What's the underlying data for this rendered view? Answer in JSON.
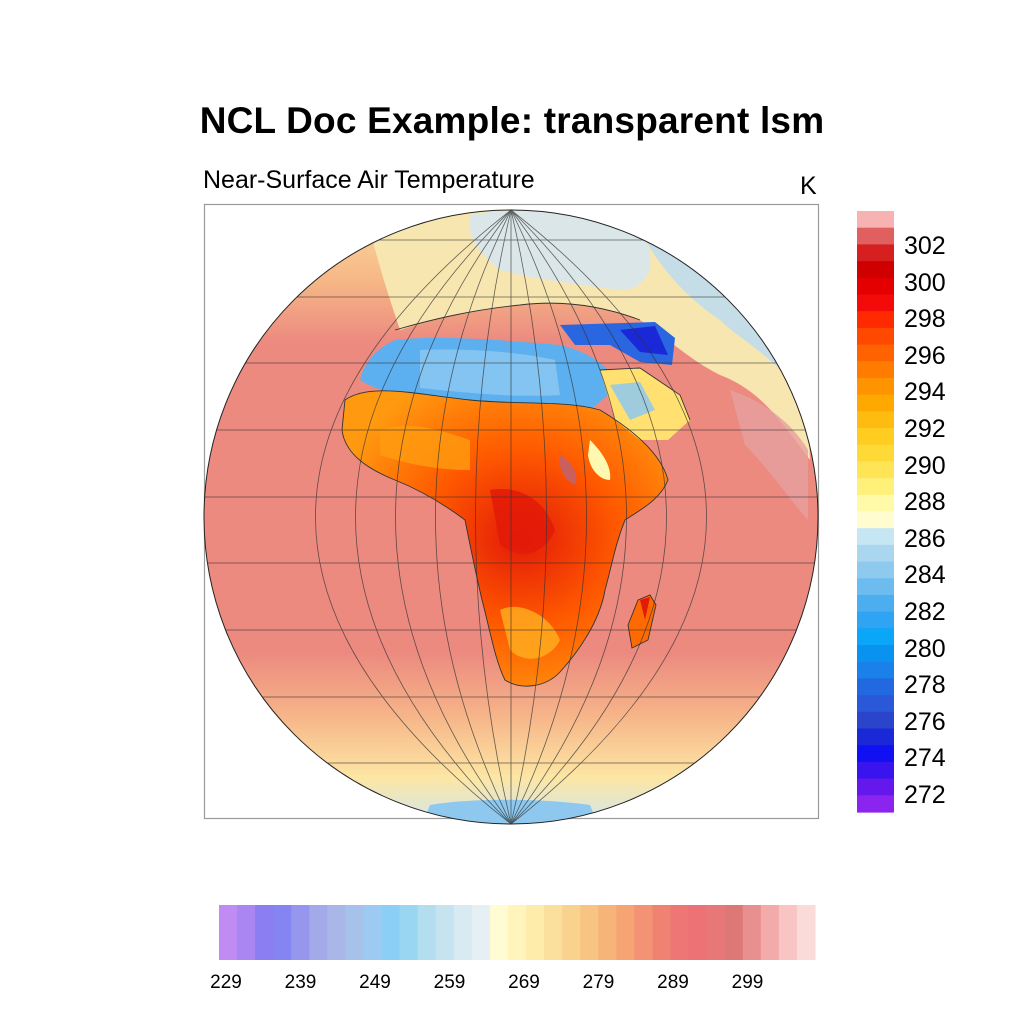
{
  "title": "NCL Doc Example: transparent lsm",
  "subtitle": "Near-Surface Air Temperature",
  "units": "K",
  "land_colorbar": {
    "labels": [
      "302",
      "300",
      "298",
      "296",
      "294",
      "292",
      "290",
      "288",
      "286",
      "284",
      "282",
      "280",
      "278",
      "276",
      "274",
      "272"
    ],
    "colors_top_to_bottom": [
      "#f7b2b2",
      "#e06060",
      "#d62020",
      "#d00000",
      "#e40000",
      "#f50a0a",
      "#ff2a00",
      "#ff4800",
      "#ff6200",
      "#ff7c00",
      "#ff9400",
      "#ffa800",
      "#ffbc10",
      "#ffcc20",
      "#ffda36",
      "#ffe456",
      "#fff07a",
      "#fffaa8",
      "#fffdd0",
      "#c6e6f4",
      "#aad6ef",
      "#8ecaee",
      "#6cbcf0",
      "#4caeef",
      "#2ea4f3",
      "#0aa6f8",
      "#0a92f0",
      "#1a80ea",
      "#2268e0",
      "#2a58d8",
      "#2a44cc",
      "#1a28d8",
      "#1010f2",
      "#3a14ee",
      "#6418ec",
      "#8a24ee"
    ]
  },
  "ocean_colorbar": {
    "labels": [
      "229",
      "239",
      "249",
      "259",
      "269",
      "279",
      "289",
      "299"
    ],
    "colors_left_to_right": [
      "#c08cf4",
      "#aa86f2",
      "#8a7ef2",
      "#8484f2",
      "#9696ee",
      "#a2aaea",
      "#a8b6e8",
      "#a6c2ea",
      "#9ccaf2",
      "#8ccff6",
      "#98d6f2",
      "#b2def0",
      "#c6e4f0",
      "#d8eaf2",
      "#e6f0f4",
      "#fffbd2",
      "#fff4bc",
      "#fdecaa",
      "#fbe09c",
      "#f9d28e",
      "#f8c482",
      "#f7b478",
      "#f6a474",
      "#f39274",
      "#f08272",
      "#ee7674",
      "#ec7276",
      "#e87878",
      "#de7876",
      "#e89090",
      "#f2aaaa",
      "#f8c4c4",
      "#fbdada"
    ]
  }
}
